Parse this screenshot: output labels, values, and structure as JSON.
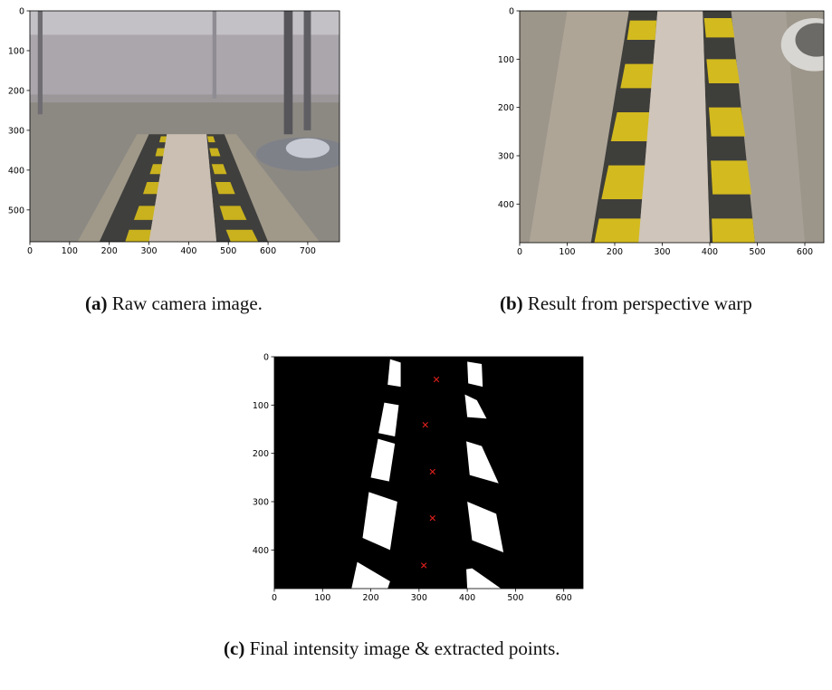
{
  "figures": [
    {
      "label": "(a)",
      "caption": "Raw camera image.",
      "xlim": [
        0,
        780
      ],
      "ylim": [
        0,
        580
      ],
      "xticks": [
        0,
        100,
        200,
        300,
        400,
        500,
        600,
        700
      ],
      "yticks": [
        0,
        100,
        200,
        300,
        400,
        500
      ]
    },
    {
      "label": "(b)",
      "caption": "Result from perspective warp",
      "xlim": [
        0,
        640
      ],
      "ylim": [
        0,
        480
      ],
      "xticks": [
        0,
        100,
        200,
        300,
        400,
        500,
        600
      ],
      "yticks": [
        0,
        100,
        200,
        300,
        400
      ]
    },
    {
      "label": "(c)",
      "caption": "Final intensity image & extracted points.",
      "xlim": [
        0,
        640
      ],
      "ylim": [
        0,
        480
      ],
      "xticks": [
        0,
        100,
        200,
        300,
        400,
        500,
        600
      ],
      "yticks": [
        0,
        100,
        200,
        300,
        400
      ],
      "points": {
        "x": [
          336,
          313,
          328,
          328,
          310
        ],
        "y": [
          47,
          141,
          238,
          334,
          432
        ]
      }
    }
  ]
}
